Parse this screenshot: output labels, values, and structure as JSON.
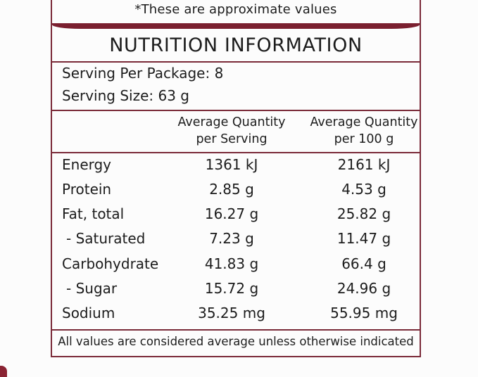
{
  "note": "*These are approximate values",
  "title": "NUTRITION INFORMATION",
  "serving": {
    "per_package": "Serving Per Package: 8",
    "size": "Serving Size: 63 g"
  },
  "columns": {
    "per_serving_line1": "Average Quantity",
    "per_serving_line2": "per Serving",
    "per_100g_line1": "Average Quantity",
    "per_100g_line2": "per 100 g"
  },
  "rows": [
    {
      "name": "Energy",
      "per_serving": "1361 kJ",
      "per_100g": "2161 kJ"
    },
    {
      "name": "Protein",
      "per_serving": "2.85 g",
      "per_100g": "4.53 g"
    },
    {
      "name": "Fat, total",
      "per_serving": "16.27 g",
      "per_100g": "25.82 g"
    },
    {
      "name": "- Saturated",
      "per_serving": "7.23 g",
      "per_100g": "11.47 g"
    },
    {
      "name": "Carbohydrate",
      "per_serving": "41.83 g",
      "per_100g": "66.4 g"
    },
    {
      "name": "- Sugar",
      "per_serving": "15.72 g",
      "per_100g": "24.96 g"
    },
    {
      "name": "Sodium",
      "per_serving": "35.25 mg",
      "per_100g": "55.95 mg"
    }
  ],
  "footer": "All values are considered average unless otherwise indicated",
  "colors": {
    "accent": "#7a1f2f",
    "rule": "#7a2a38",
    "text": "#1c1c1c",
    "background": "#fcfcfc"
  }
}
